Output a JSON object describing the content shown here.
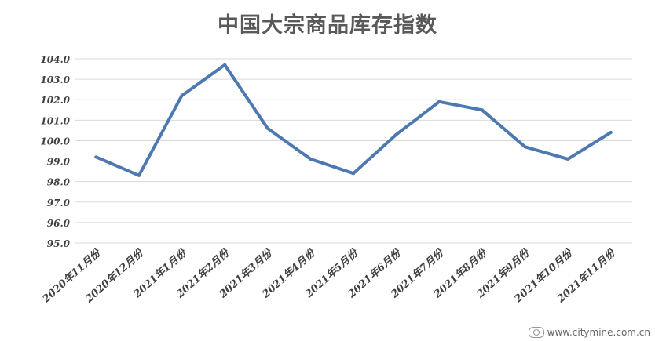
{
  "chart_data": {
    "type": "line",
    "title": "中国大宗商品库存指数",
    "xlabel": "",
    "ylabel": "",
    "categories": [
      "2020年11月份",
      "2020年12月份",
      "2021年1月份",
      "2021年2月份",
      "2021年3月份",
      "2021年4月份",
      "2021年5月份",
      "2021年6月份",
      "2021年7月份",
      "2021年8月份",
      "2021年9月份",
      "2021年10月份",
      "2021年11月份"
    ],
    "series": [
      {
        "values": [
          99.2,
          98.3,
          102.2,
          103.7,
          100.6,
          99.1,
          98.4,
          100.3,
          101.9,
          101.5,
          99.7,
          99.1,
          100.4
        ]
      }
    ],
    "ylim": [
      95.0,
      104.0
    ],
    "yticks": [
      "95.0",
      "96.0",
      "97.0",
      "98.0",
      "99.0",
      "100.0",
      "101.0",
      "102.0",
      "103.0",
      "104.0"
    ],
    "grid": true,
    "legend": "none",
    "line_color": "#4e79b0"
  },
  "watermark": {
    "text": "www.citymine.com.cn"
  }
}
